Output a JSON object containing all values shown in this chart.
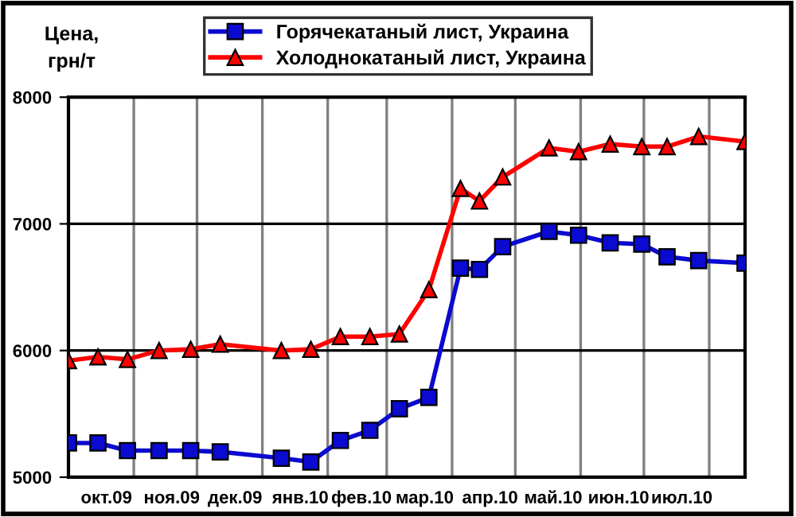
{
  "chart_data": {
    "type": "line",
    "ylabel": "Цена,\nгрн/т",
    "x": [
      "2009-10-01",
      "2009-10-15",
      "2009-10-29",
      "2009-11-13",
      "2009-11-28",
      "2009-12-12",
      "2010-01-10",
      "2010-01-24",
      "2010-02-07",
      "2010-02-21",
      "2010-03-07",
      "2010-03-21",
      "2010-04-05",
      "2010-04-14",
      "2010-04-25",
      "2010-05-17",
      "2010-05-31",
      "2010-06-15",
      "2010-06-30",
      "2010-07-12",
      "2010-07-27",
      "2010-08-18"
    ],
    "series": [
      {
        "name": "Горячекатаный лист, Украина",
        "color": "#0a0ad0",
        "marker": "square",
        "values": [
          5270,
          5270,
          5210,
          5210,
          5210,
          5200,
          5150,
          5120,
          5290,
          5370,
          5540,
          5630,
          6650,
          6640,
          6820,
          6940,
          6910,
          6850,
          6840,
          6740,
          6710,
          6690
        ]
      },
      {
        "name": "Холоднокатаный лист, Украина",
        "color": "#ff0000",
        "marker": "triangle",
        "values": [
          5920,
          5950,
          5930,
          6000,
          6010,
          6050,
          6000,
          6010,
          6110,
          6110,
          6130,
          6480,
          7280,
          7180,
          7370,
          7600,
          7570,
          7630,
          7610,
          7610,
          7690,
          7650
        ]
      }
    ],
    "xlim": [
      "2009-10-01",
      "2010-08-18"
    ],
    "xticks": [
      {
        "value": "2009-11-01",
        "label": null
      },
      {
        "value": "2009-12-01",
        "label": null
      },
      {
        "value": "2010-01-01",
        "label": null
      },
      {
        "value": "2010-02-01",
        "label": null
      },
      {
        "value": "2010-03-01",
        "label": null
      },
      {
        "value": "2010-04-01",
        "label": null
      },
      {
        "value": "2010-05-01",
        "label": null
      },
      {
        "value": "2010-06-01",
        "label": null
      },
      {
        "value": "2010-07-01",
        "label": null
      },
      {
        "value": "2010-08-01",
        "label": null
      },
      {
        "value": "2009-10-19",
        "label": "окт.09"
      },
      {
        "value": "2009-11-19",
        "label": "ноя.09"
      },
      {
        "value": "2009-12-19",
        "label": "дек.09"
      },
      {
        "value": "2010-01-19",
        "label": "янв.10"
      },
      {
        "value": "2010-02-17",
        "label": "фев.10"
      },
      {
        "value": "2010-03-19",
        "label": "мар.10"
      },
      {
        "value": "2010-04-19",
        "label": "апр.10"
      },
      {
        "value": "2010-05-19",
        "label": "май.10"
      },
      {
        "value": "2010-06-19",
        "label": "июн.10"
      },
      {
        "value": "2010-07-19",
        "label": "июл.10"
      }
    ],
    "ylim": [
      5000,
      8000
    ],
    "yticks": [
      5000,
      6000,
      7000,
      8000
    ],
    "grid": true,
    "legend": "top",
    "line_style": "solid"
  }
}
